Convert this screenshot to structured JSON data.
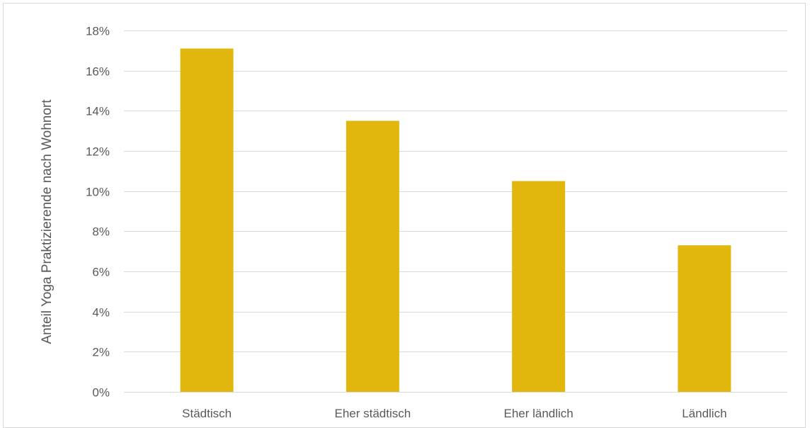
{
  "chart_data": {
    "type": "bar",
    "title": "",
    "xlabel": "",
    "ylabel": "Anteil Yoga Praktizierende nach Wohnort",
    "categories": [
      "Städtisch",
      "Eher städtisch",
      "Eher ländlich",
      "Ländlich"
    ],
    "values": [
      0.171,
      0.135,
      0.105,
      0.073
    ],
    "ylim": [
      0,
      0.18
    ],
    "yticks": [
      0,
      0.02,
      0.04,
      0.06,
      0.08,
      0.1,
      0.12,
      0.14,
      0.16,
      0.18
    ],
    "ytick_labels": [
      "0%",
      "2%",
      "4%",
      "6%",
      "8%",
      "10%",
      "12%",
      "14%",
      "16%",
      "18%"
    ],
    "grid": true,
    "legend": "none",
    "bar_color": "#E1B70E",
    "grid_color": "#D9D9D9",
    "text_color": "#595959"
  }
}
